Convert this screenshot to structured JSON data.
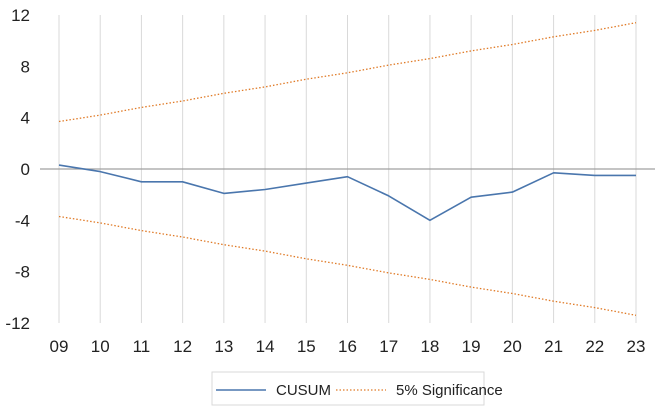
{
  "chart_data": {
    "type": "line",
    "categories": [
      "09",
      "10",
      "11",
      "12",
      "13",
      "14",
      "15",
      "16",
      "17",
      "18",
      "19",
      "20",
      "21",
      "22",
      "23"
    ],
    "series": [
      {
        "name": "CUSUM",
        "color": "#4a76ad",
        "style": "solid",
        "values": [
          0.3,
          -0.2,
          -1.0,
          -1.0,
          -1.9,
          -1.6,
          -1.1,
          -0.6,
          -2.1,
          -4.0,
          -2.2,
          -1.8,
          -0.3,
          -0.5,
          -0.5
        ]
      },
      {
        "name": "5% Significance",
        "color": "#e07b28",
        "style": "dotted",
        "values": [
          3.7,
          4.2,
          4.8,
          5.3,
          5.9,
          6.4,
          7.0,
          7.5,
          8.1,
          8.6,
          9.2,
          9.7,
          10.3,
          10.8,
          11.4
        ]
      },
      {
        "name": "5% Significance",
        "color": "#e07b28",
        "style": "dotted",
        "values": [
          -3.7,
          -4.2,
          -4.8,
          -5.3,
          -5.9,
          -6.4,
          -7.0,
          -7.5,
          -8.1,
          -8.6,
          -9.2,
          -9.7,
          -10.3,
          -10.8,
          -11.4
        ]
      }
    ],
    "yticks": [
      "12",
      "8",
      "4",
      "0",
      "-4",
      "-8",
      "-12"
    ],
    "ytick_values": [
      12,
      8,
      4,
      0,
      -4,
      -8,
      -12
    ],
    "ylim": [
      -12,
      12
    ],
    "grid": "vertical",
    "zero_line_color": "#a0a0a0",
    "grid_color": "#d9d9d9",
    "legend": {
      "position": "bottom",
      "items": [
        {
          "label": "CUSUM",
          "color": "#4a76ad",
          "style": "solid"
        },
        {
          "label": "5% Significance",
          "color": "#e07b28",
          "style": "dotted"
        }
      ]
    },
    "title": "",
    "xlabel": "",
    "ylabel": ""
  }
}
